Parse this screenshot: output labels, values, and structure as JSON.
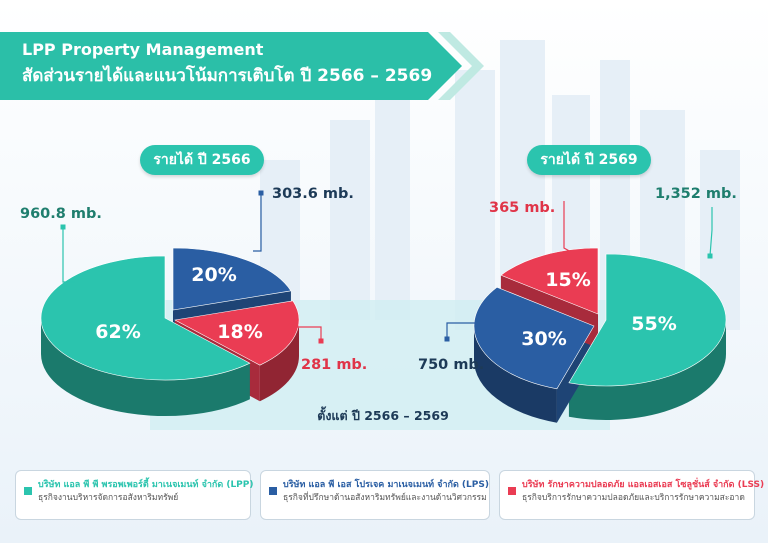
{
  "header": {
    "line1": "LPP Property Management",
    "line2": "สัดส่วนรายได้และแนวโน้มการเติบโต ปี 2566 – 2569"
  },
  "colors": {
    "lpp": "#2bc4ae",
    "lps": "#2a5ea3",
    "lss": "#ea3c53",
    "banner": "#2bbfa8"
  },
  "chart_data": [
    {
      "type": "pie",
      "title": "รายได้ ปี 2566",
      "slices": [
        {
          "key": "lpp",
          "percent_label": "62%",
          "value": 62,
          "amount_label": "960.8 mb."
        },
        {
          "key": "lps",
          "percent_label": "20%",
          "value": 20,
          "amount_label": "303.6 mb."
        },
        {
          "key": "lss",
          "percent_label": "18%",
          "value": 18,
          "amount_label": "281 mb."
        }
      ]
    },
    {
      "type": "pie",
      "title": "รายได้ ปี 2569",
      "slices": [
        {
          "key": "lpp",
          "percent_label": "55%",
          "value": 55,
          "amount_label": "1,352 mb."
        },
        {
          "key": "lps",
          "percent_label": "30%",
          "value": 30,
          "amount_label": "750 mb."
        },
        {
          "key": "lss",
          "percent_label": "15%",
          "value": 15,
          "amount_label": "365 mb."
        }
      ]
    }
  ],
  "bridge_label": "ตั้งแต่ ปี 2566 – 2569",
  "legend": [
    {
      "key": "lpp",
      "name": "บริษัท แอล พี พี พรอพเพอร์ตี้ มาเนจเมนท์ จำกัด (LPP)",
      "desc": "ธุรกิจงานบริหารจัดการอสังหาริมทรัพย์"
    },
    {
      "key": "lps",
      "name": "บริษัท แอล พี เอส โปรเจค มาเนจเมนท์ จำกัด (LPS)",
      "desc": "ธุรกิจที่ปรึกษาด้านอสังหาริมทรัพย์และงานด้านวิศวกรรม"
    },
    {
      "key": "lss",
      "name": "บริษัท รักษาความปลอดภัย แอลเอสเอส โซลูชั่นส์ จำกัด (LSS)",
      "desc": "ธุรกิจบริการรักษาความปลอดภัยและบริการรักษาความสะอาด"
    }
  ]
}
